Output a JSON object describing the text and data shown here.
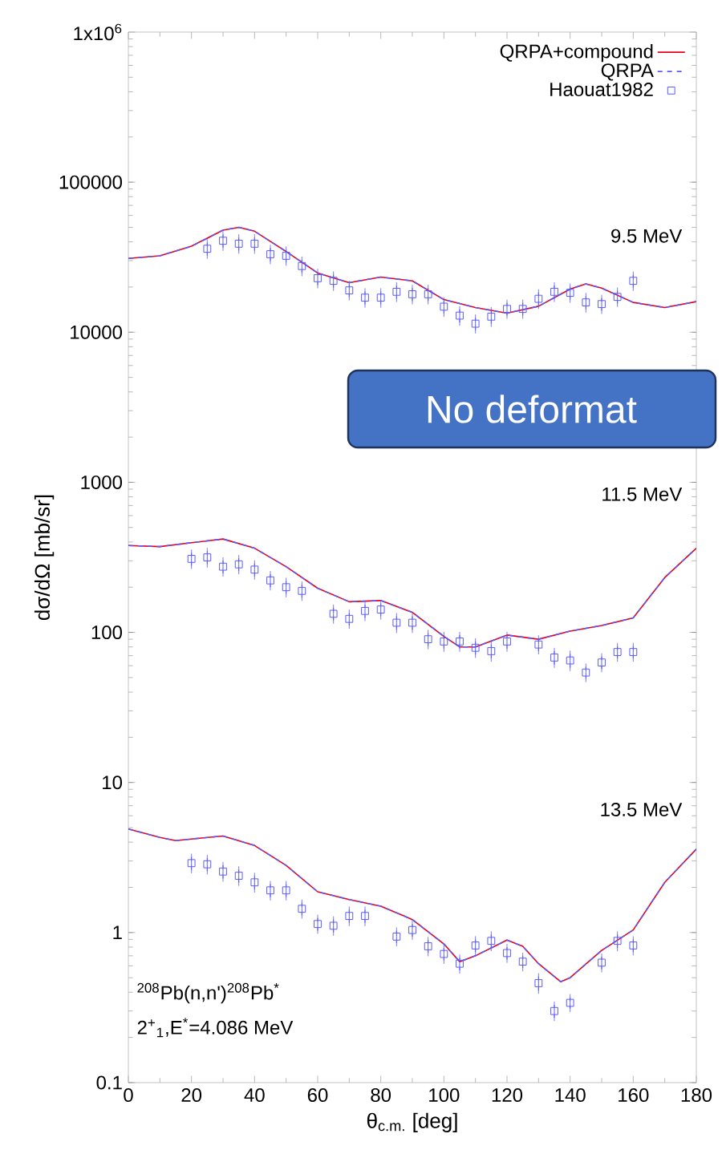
{
  "chart_data": {
    "type": "line",
    "xlabel": "θ$_{c.m.}$ [deg]",
    "ylabel": "dσ/dΩ [mb/sr]",
    "log": "y",
    "legend": "top right",
    "xlim": [
      0,
      180
    ],
    "xticks": [
      0,
      20,
      40,
      60,
      80,
      100,
      120,
      140,
      160,
      180
    ],
    "ylim": [
      0.1,
      1000000
    ],
    "yticks": [
      0.1,
      1,
      10,
      100,
      1000,
      10000,
      100000,
      {
        "value": 1000000,
        "label": "1x10$^{6}$"
      }
    ],
    "series": [
      {
        "name": "QRPA+compound",
        "color": "#e8001c",
        "line_style": "solid",
        "x": [
          0,
          10,
          20,
          30,
          35,
          40,
          50,
          60,
          70,
          80,
          90,
          100,
          110,
          120,
          130,
          140,
          145,
          150,
          160,
          170,
          180
        ],
        "values": [
          31000,
          32300,
          37400,
          47900,
          50000,
          47100,
          34500,
          24800,
          21400,
          23300,
          22000,
          16500,
          14600,
          13400,
          14900,
          19400,
          21000,
          19700,
          15800,
          14600,
          16000
        ]
      },
      {
        "name": "QRPA",
        "color": "#5a5aff",
        "line_style": "dashed",
        "x": [
          0,
          10,
          20,
          30,
          35,
          40,
          50,
          60,
          70,
          80,
          90,
          100,
          110,
          120,
          130,
          140,
          145,
          150,
          160,
          170,
          180
        ],
        "values": [
          31000,
          32300,
          37400,
          47900,
          50000,
          47100,
          34500,
          24800,
          21400,
          23300,
          22000,
          16500,
          14600,
          13400,
          14900,
          19400,
          21000,
          19700,
          15800,
          14600,
          16000
        ]
      },
      {
        "name": "Haouat1982",
        "type": "scatter",
        "color": "#5a5aff",
        "marker": "square",
        "x": [
          25,
          30,
          35,
          40,
          45,
          50,
          55,
          60,
          65,
          70,
          75,
          80,
          85,
          90,
          95,
          100,
          105,
          110,
          115,
          120,
          125,
          130,
          135,
          140,
          145,
          150,
          155,
          160
        ],
        "values": [
          36000,
          40700,
          38900,
          38900,
          33100,
          32300,
          27600,
          22900,
          22000,
          19000,
          17000,
          17000,
          18600,
          17900,
          17900,
          14800,
          12900,
          11400,
          12700,
          14300,
          14300,
          16700,
          18600,
          18300,
          15800,
          15400,
          17200,
          22000
        ],
        "errors": [
          3600,
          4100,
          3900,
          3900,
          3300,
          3200,
          2800,
          2300,
          2200,
          1900,
          1700,
          1700,
          1900,
          1800,
          1800,
          1500,
          1300,
          1100,
          1300,
          1400,
          1400,
          1700,
          1900,
          1800,
          1600,
          1500,
          1700,
          2200
        ]
      },
      {
        "color": "#e8001c",
        "line_style": "solid",
        "x": [
          0,
          10,
          20,
          30,
          40,
          50,
          60,
          70,
          80,
          90,
          100,
          105,
          110,
          120,
          130,
          140,
          150,
          160,
          170,
          180
        ],
        "values": [
          379,
          373,
          396,
          419,
          364,
          274,
          197,
          160,
          163,
          136,
          94,
          80,
          80,
          96,
          90,
          102,
          111,
          125,
          232,
          364
        ]
      },
      {
        "color": "#5a5aff",
        "line_style": "dashed",
        "x": [
          0,
          10,
          20,
          30,
          40,
          50,
          60,
          70,
          80,
          90,
          100,
          105,
          110,
          120,
          130,
          140,
          150,
          160,
          170,
          180
        ],
        "values": [
          379,
          373,
          396,
          419,
          364,
          274,
          197,
          160,
          163,
          136,
          94,
          80,
          80,
          96,
          90,
          102,
          111,
          125,
          232,
          364
        ]
      },
      {
        "type": "scatter",
        "color": "#5a5aff",
        "marker": "square",
        "x": [
          20,
          25,
          30,
          35,
          40,
          45,
          50,
          55,
          65,
          70,
          75,
          80,
          85,
          90,
          95,
          100,
          105,
          110,
          115,
          120,
          130,
          135,
          140,
          145,
          150,
          155,
          160
        ],
        "values": [
          309,
          316,
          274,
          284,
          262,
          222,
          200,
          189,
          133,
          123,
          139,
          142,
          116,
          116,
          90,
          87,
          87,
          79,
          75,
          87,
          83,
          68,
          65,
          54,
          63,
          74,
          74
        ],
        "errors": [
          31,
          32,
          27,
          28,
          26,
          22,
          20,
          19,
          13,
          12,
          14,
          14,
          12,
          12,
          9,
          9,
          9,
          8,
          8,
          9,
          8,
          7,
          7,
          5,
          6,
          7,
          7
        ]
      },
      {
        "color": "#e8001c",
        "line_style": "solid",
        "x": [
          0,
          10,
          15,
          20,
          30,
          40,
          50,
          60,
          70,
          80,
          90,
          100,
          105,
          110,
          120,
          125,
          130,
          137,
          140,
          150,
          160,
          170,
          180
        ],
        "values": [
          4.9,
          4.3,
          4.1,
          4.2,
          4.4,
          3.8,
          2.8,
          1.87,
          1.66,
          1.5,
          1.22,
          0.84,
          0.64,
          0.7,
          0.89,
          0.81,
          0.62,
          0.47,
          0.5,
          0.76,
          1.04,
          2.16,
          3.6
        ]
      },
      {
        "color": "#5a5aff",
        "line_style": "dashed",
        "x": [
          0,
          10,
          15,
          20,
          30,
          40,
          50,
          60,
          70,
          80,
          90,
          100,
          105,
          110,
          120,
          125,
          130,
          137,
          140,
          150,
          160,
          170,
          180
        ],
        "values": [
          4.9,
          4.3,
          4.1,
          4.2,
          4.4,
          3.8,
          2.8,
          1.87,
          1.66,
          1.5,
          1.22,
          0.84,
          0.64,
          0.7,
          0.89,
          0.81,
          0.62,
          0.47,
          0.5,
          0.76,
          1.04,
          2.16,
          3.6
        ]
      },
      {
        "type": "scatter",
        "color": "#5a5aff",
        "marker": "square",
        "x": [
          20,
          25,
          30,
          35,
          40,
          45,
          50,
          55,
          60,
          65,
          70,
          75,
          85,
          90,
          95,
          100,
          105,
          110,
          115,
          120,
          125,
          130,
          135,
          140,
          150,
          155,
          160
        ],
        "values": [
          2.9,
          2.85,
          2.55,
          2.39,
          2.16,
          1.91,
          1.91,
          1.44,
          1.14,
          1.11,
          1.29,
          1.29,
          0.94,
          1.04,
          0.81,
          0.72,
          0.62,
          0.82,
          0.88,
          0.73,
          0.64,
          0.46,
          0.3,
          0.34,
          0.63,
          0.88,
          0.82
        ],
        "errors": [
          0.29,
          0.29,
          0.26,
          0.24,
          0.22,
          0.19,
          0.19,
          0.14,
          0.11,
          0.11,
          0.13,
          0.13,
          0.09,
          0.1,
          0.08,
          0.07,
          0.06,
          0.08,
          0.09,
          0.07,
          0.06,
          0.05,
          0.03,
          0.03,
          0.06,
          0.09,
          0.08
        ]
      }
    ],
    "annotations": [
      "9.5 MeV",
      "11.5 MeV",
      "13.5 MeV",
      "$^{208}$Pb(n,n')$^{208}$Pb$^{*}$",
      "2$^{+}$$_{1}$,E$^{*}$=4.086 MeV",
      "No deformat"
    ]
  }
}
